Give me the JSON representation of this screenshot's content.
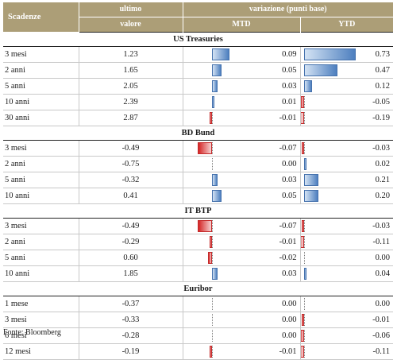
{
  "header": {
    "maturity_label": "Scadenze",
    "last_value_label_line1": "ultimo",
    "last_value_label_line2": "valore",
    "change_label": "variazione (punti base)",
    "mtd_label": "MTD",
    "ytd_label": "YTD"
  },
  "sections": [
    {
      "title": "US Treasuries",
      "rows": [
        {
          "maturity": "3 mesi",
          "value": "1.23",
          "mtd": 0.09,
          "ytd": 0.73
        },
        {
          "maturity": "2 anni",
          "value": "1.65",
          "mtd": 0.05,
          "ytd": 0.47
        },
        {
          "maturity": "5 anni",
          "value": "2.05",
          "mtd": 0.03,
          "ytd": 0.12
        },
        {
          "maturity": "10 anni",
          "value": "2.39",
          "mtd": 0.01,
          "ytd": -0.05
        },
        {
          "maturity": "30 anni",
          "value": "2.87",
          "mtd": -0.01,
          "ytd": -0.19
        }
      ]
    },
    {
      "title": "BD Bund",
      "rows": [
        {
          "maturity": "3 mesi",
          "value": "-0.49",
          "mtd": -0.07,
          "ytd": -0.03
        },
        {
          "maturity": "2 anni",
          "value": "-0.75",
          "mtd": 0.0,
          "ytd": 0.02
        },
        {
          "maturity": "5 anni",
          "value": "-0.32",
          "mtd": 0.03,
          "ytd": 0.21
        },
        {
          "maturity": "10 anni",
          "value": "0.41",
          "mtd": 0.05,
          "ytd": 0.2
        }
      ]
    },
    {
      "title": "IT BTP",
      "rows": [
        {
          "maturity": "3 mesi",
          "value": "-0.49",
          "mtd": -0.07,
          "ytd": -0.03
        },
        {
          "maturity": "2 anni",
          "value": "-0.29",
          "mtd": -0.01,
          "ytd": -0.11
        },
        {
          "maturity": "5 anni",
          "value": "0.60",
          "mtd": -0.02,
          "ytd": 0.0
        },
        {
          "maturity": "10 anni",
          "value": "1.85",
          "mtd": 0.03,
          "ytd": 0.04
        }
      ]
    },
    {
      "title": "Euribor",
      "rows": [
        {
          "maturity": "1 mese",
          "value": "-0.37",
          "mtd": 0.0,
          "ytd": 0.0
        },
        {
          "maturity": "3 mesi",
          "value": "-0.33",
          "mtd": 0.0,
          "ytd": -0.01
        },
        {
          "maturity": "6 mesi",
          "value": "-0.28",
          "mtd": 0.0,
          "ytd": -0.06
        },
        {
          "maturity": "12 mesi",
          "value": "-0.19",
          "mtd": -0.01,
          "ytd": -0.11
        }
      ]
    }
  ],
  "source": "Fonte: Bloomberg",
  "colors": {
    "header_bg": "#ac9e77",
    "positive_bar": "#4d7fbf",
    "negative_bar": "#d42424"
  }
}
